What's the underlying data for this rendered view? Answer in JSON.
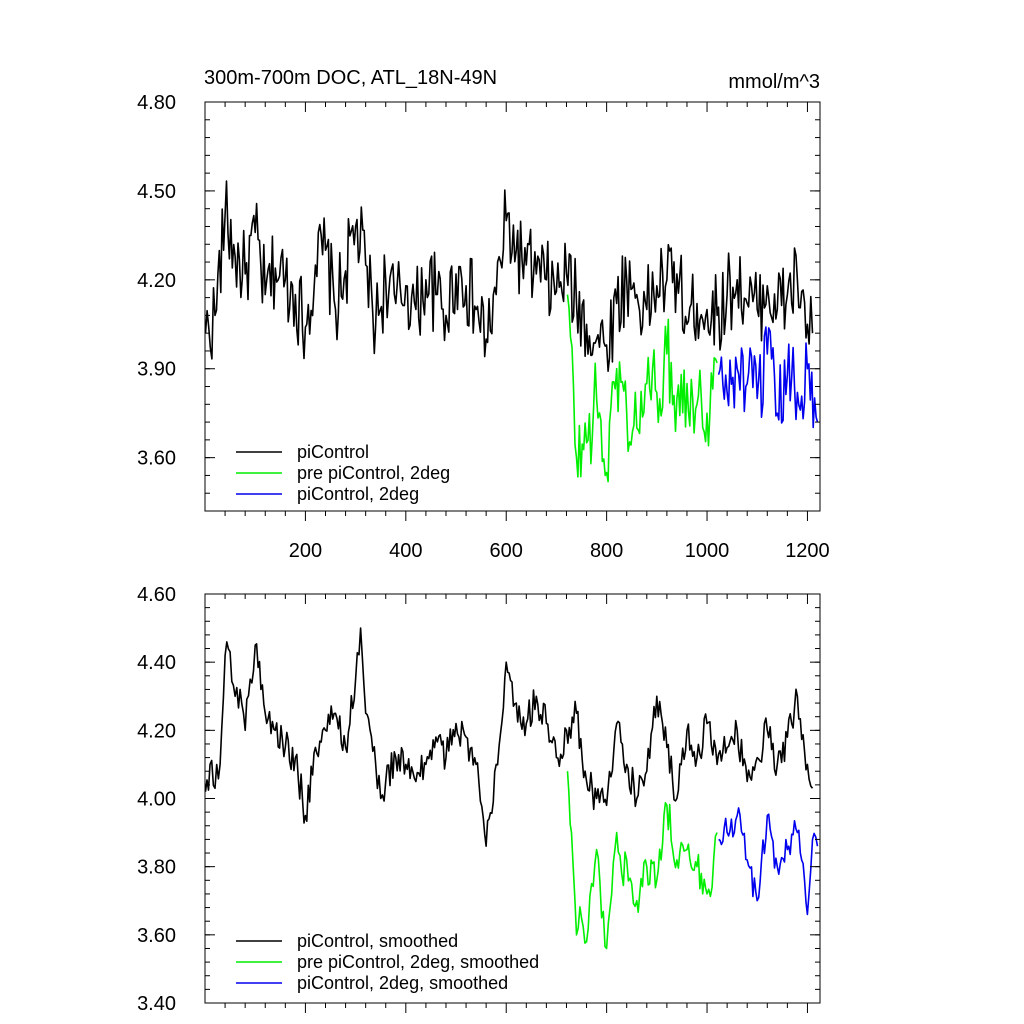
{
  "chart_data": [
    {
      "type": "line",
      "title": "300m-700m DOC, ATL_18N-49N",
      "units": "mmol/m^3",
      "xlim": [
        0,
        1225
      ],
      "ylim": [
        3.42,
        4.8
      ],
      "x_ticks": [
        200,
        400,
        600,
        800,
        1000,
        1200
      ],
      "y_ticks": [
        3.6,
        3.9,
        4.2,
        4.5,
        4.8
      ],
      "y_tick_labels": [
        "3.60",
        "3.90",
        "4.20",
        "4.50",
        "4.80"
      ],
      "show_x_tick_labels": true,
      "noise": 1.0,
      "series": [
        {
          "name": "piControl",
          "color": "#000000",
          "x": [
            1,
            20,
            40,
            60,
            80,
            100,
            120,
            140,
            160,
            180,
            200,
            220,
            240,
            260,
            280,
            300,
            320,
            340,
            360,
            380,
            400,
            420,
            440,
            460,
            480,
            500,
            520,
            540,
            560,
            580,
            600,
            620,
            640,
            660,
            680,
            700,
            720,
            740,
            760,
            780,
            800,
            820,
            840,
            860,
            880,
            900,
            920,
            940,
            960,
            980,
            1000,
            1020,
            1040,
            1060,
            1080,
            1100,
            1120,
            1140,
            1160,
            1180,
            1200,
            1210
          ],
          "y": [
            4.02,
            4.08,
            4.42,
            4.28,
            4.22,
            4.36,
            4.15,
            4.24,
            4.2,
            4.15,
            4.04,
            4.25,
            4.3,
            4.1,
            4.23,
            4.38,
            4.25,
            4.05,
            4.2,
            4.12,
            4.18,
            4.1,
            4.2,
            4.15,
            4.08,
            4.22,
            4.18,
            4.1,
            4.0,
            4.15,
            4.4,
            4.3,
            4.25,
            4.22,
            4.2,
            4.16,
            4.22,
            4.12,
            4.05,
            4.0,
            3.98,
            4.12,
            4.2,
            4.15,
            4.1,
            4.18,
            4.2,
            4.22,
            4.05,
            4.12,
            4.1,
            4.08,
            4.15,
            4.2,
            4.12,
            4.1,
            4.18,
            4.1,
            4.15,
            4.2,
            4.05,
            4.02
          ]
        },
        {
          "name": "pre piControl, 2deg",
          "color": "#00ee00",
          "x": [
            722,
            740,
            760,
            780,
            800,
            820,
            840,
            860,
            880,
            900,
            920,
            940,
            960,
            980,
            1000,
            1020
          ],
          "y": [
            4.15,
            3.6,
            3.65,
            3.8,
            3.55,
            3.9,
            3.75,
            3.7,
            3.85,
            3.82,
            3.95,
            3.8,
            3.85,
            3.78,
            3.75,
            3.92
          ]
        },
        {
          "name": "piControl, 2deg",
          "color": "#0000ee",
          "x": [
            1023,
            1040,
            1060,
            1080,
            1100,
            1120,
            1140,
            1160,
            1180,
            1200,
            1220
          ],
          "y": [
            3.88,
            3.82,
            3.9,
            3.85,
            3.8,
            3.95,
            3.75,
            3.88,
            3.82,
            3.9,
            3.72
          ]
        }
      ]
    },
    {
      "type": "line",
      "title": "",
      "units": "",
      "xlim": [
        0,
        1225
      ],
      "ylim": [
        3.4,
        4.6
      ],
      "x_ticks": [
        200,
        400,
        600,
        800,
        1000,
        1200
      ],
      "y_ticks": [
        3.4,
        3.6,
        3.8,
        4.0,
        4.2,
        4.4,
        4.6
      ],
      "y_tick_labels": [
        "3.40",
        "3.60",
        "3.80",
        "4.00",
        "4.20",
        "4.40",
        "4.60"
      ],
      "show_x_tick_labels": false,
      "noise": 0.35,
      "series": [
        {
          "name": "piControl, smoothed",
          "color": "#000000",
          "x": [
            1,
            10,
            20,
            30,
            40,
            50,
            60,
            70,
            80,
            90,
            100,
            120,
            140,
            160,
            180,
            200,
            220,
            240,
            260,
            280,
            300,
            310,
            320,
            340,
            350,
            360,
            380,
            400,
            420,
            440,
            460,
            480,
            500,
            520,
            540,
            560,
            580,
            600,
            620,
            640,
            660,
            680,
            700,
            720,
            740,
            760,
            780,
            800,
            820,
            840,
            860,
            880,
            900,
            920,
            940,
            960,
            980,
            1000,
            1020,
            1040,
            1060,
            1080,
            1100,
            1120,
            1140,
            1160,
            1180,
            1200,
            1210
          ],
          "y": [
            4.02,
            4.1,
            4.03,
            4.1,
            4.42,
            4.43,
            4.3,
            4.32,
            4.2,
            4.35,
            4.45,
            4.25,
            4.2,
            4.15,
            4.12,
            3.95,
            4.15,
            4.2,
            4.25,
            4.15,
            4.35,
            4.5,
            4.25,
            4.1,
            4.0,
            4.05,
            4.12,
            4.1,
            4.05,
            4.1,
            4.18,
            4.12,
            4.22,
            4.18,
            4.1,
            3.86,
            4.1,
            4.4,
            4.28,
            4.22,
            4.3,
            4.22,
            4.12,
            4.2,
            4.25,
            4.05,
            4.0,
            3.98,
            4.22,
            4.1,
            4.0,
            4.08,
            4.3,
            4.15,
            4.0,
            4.2,
            4.12,
            4.22,
            4.1,
            4.15,
            4.2,
            4.05,
            4.12,
            4.2,
            4.1,
            4.18,
            4.3,
            4.1,
            4.03
          ]
        },
        {
          "name": "pre piControl, 2deg, smoothed",
          "color": "#00ee00",
          "x": [
            722,
            730,
            740,
            750,
            760,
            770,
            780,
            790,
            800,
            810,
            820,
            830,
            840,
            850,
            860,
            880,
            900,
            920,
            940,
            960,
            980,
            1000,
            1010,
            1020
          ],
          "y": [
            4.08,
            3.9,
            3.6,
            3.65,
            3.58,
            3.75,
            3.85,
            3.65,
            3.56,
            3.72,
            3.9,
            3.78,
            3.82,
            3.75,
            3.7,
            3.8,
            3.76,
            3.98,
            3.82,
            3.85,
            3.8,
            3.72,
            3.74,
            3.9
          ]
        },
        {
          "name": "piControl, 2deg, smoothed",
          "color": "#0000ee",
          "x": [
            1023,
            1040,
            1060,
            1080,
            1100,
            1120,
            1140,
            1160,
            1180,
            1200,
            1210,
            1220
          ],
          "y": [
            3.88,
            3.9,
            3.95,
            3.82,
            3.7,
            3.95,
            3.8,
            3.85,
            3.9,
            3.66,
            3.88,
            3.86
          ]
        }
      ]
    }
  ]
}
